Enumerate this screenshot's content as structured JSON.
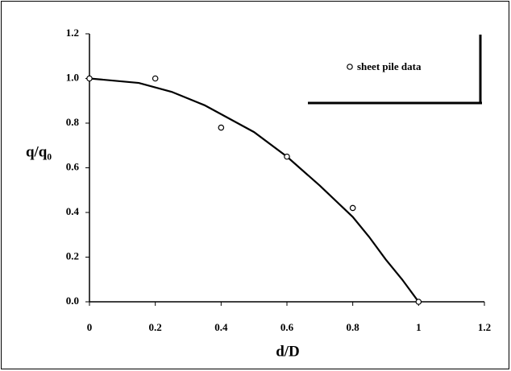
{
  "chart_data": {
    "type": "scatter",
    "x_label": "d/D",
    "y_label": "q/q₀",
    "xlim": [
      0,
      1.2
    ],
    "ylim": [
      0,
      1.2
    ],
    "xticks": [
      0,
      0.2,
      0.4,
      0.6,
      0.8,
      1,
      1.2
    ],
    "yticks": [
      {
        "value": 0,
        "label": "0.0"
      },
      {
        "value": 0.2,
        "label": "0.2"
      },
      {
        "value": 0.4,
        "label": "0.4"
      },
      {
        "value": 0.6,
        "label": "0.6"
      },
      {
        "value": 0.8,
        "label": "0.8"
      },
      {
        "value": 1,
        "label": "1.0"
      },
      {
        "value": 1.2,
        "label": "1.2"
      }
    ],
    "legend": "upper right",
    "series": [
      {
        "type": "line",
        "color": "#000000",
        "x": [
          0,
          0.15,
          0.25,
          0.35,
          0.4,
          0.5,
          0.6,
          0.7,
          0.8,
          0.85,
          0.9,
          0.95,
          1.0
        ],
        "y": [
          1.0,
          0.98,
          0.94,
          0.88,
          0.84,
          0.76,
          0.65,
          0.52,
          0.38,
          0.29,
          0.19,
          0.1,
          0
        ]
      },
      {
        "type": "scatter",
        "name": "sheet pile data",
        "color": "#000000",
        "x": [
          0,
          0.2,
          0.4,
          0.6,
          0.8,
          1.0
        ],
        "y": [
          1.0,
          1.0,
          0.78,
          0.65,
          0.42,
          0.0
        ]
      }
    ]
  }
}
